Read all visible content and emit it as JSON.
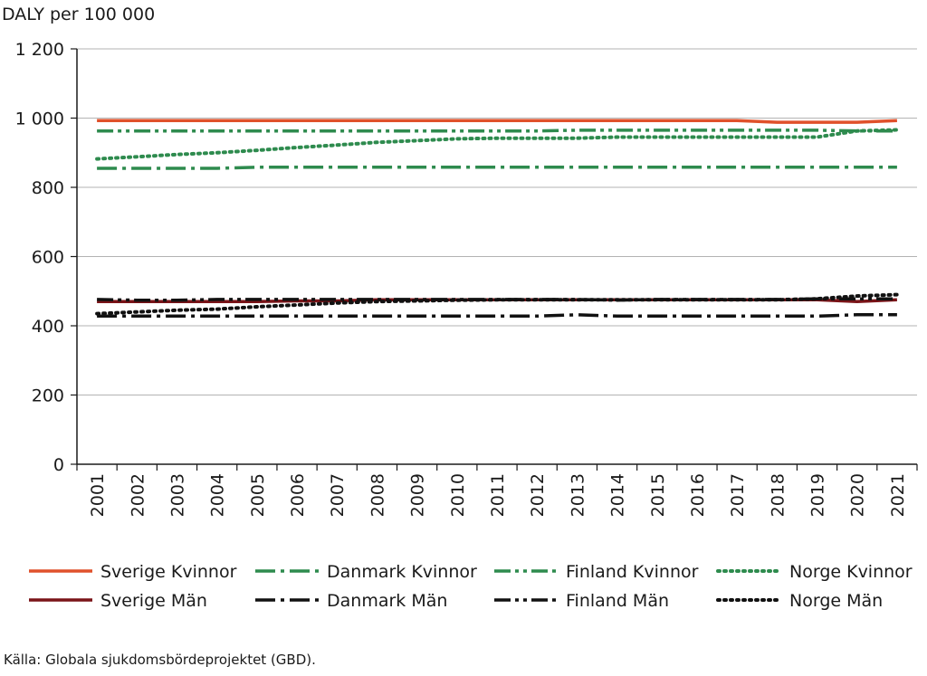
{
  "chart_data": {
    "type": "line",
    "ylabel": "DALY per 100 000",
    "xlabel": "",
    "ylim": [
      0,
      1200
    ],
    "yticks": [
      0,
      200,
      400,
      600,
      800,
      1000,
      1200
    ],
    "ytick_labels": [
      "0",
      "200",
      "400",
      "600",
      "800",
      "1 000",
      "1 200"
    ],
    "grid": "horizontal",
    "legend_position": "bottom",
    "x": [
      "2001",
      "2002",
      "2003",
      "2004",
      "2005",
      "2006",
      "2007",
      "2008",
      "2009",
      "2010",
      "2011",
      "2012",
      "2013",
      "2014",
      "2015",
      "2016",
      "2017",
      "2018",
      "2019",
      "2020",
      "2021"
    ],
    "series": [
      {
        "name": "Sverige Kvinnor",
        "color": "#e0512b",
        "style": "solid",
        "values": [
          993,
          993,
          993,
          993,
          993,
          993,
          993,
          993,
          993,
          993,
          993,
          993,
          993,
          993,
          993,
          993,
          993,
          988,
          988,
          988,
          993
        ]
      },
      {
        "name": "Danmark Kvinnor",
        "color": "#2e8b4e",
        "style": "dashdot",
        "values": [
          855,
          855,
          855,
          855,
          858,
          858,
          858,
          858,
          858,
          858,
          858,
          858,
          858,
          858,
          858,
          858,
          858,
          858,
          858,
          858,
          858
        ]
      },
      {
        "name": "Finland Kvinnor",
        "color": "#2e8b4e",
        "style": "dashdotdot",
        "values": [
          963,
          963,
          963,
          963,
          963,
          963,
          963,
          963,
          963,
          963,
          963,
          963,
          965,
          965,
          965,
          965,
          965,
          965,
          965,
          963,
          963
        ]
      },
      {
        "name": "Norge Kvinnor",
        "color": "#2e8b4e",
        "style": "dotted",
        "values": [
          882,
          888,
          895,
          900,
          907,
          915,
          922,
          930,
          935,
          940,
          942,
          942,
          942,
          945,
          945,
          945,
          945,
          945,
          945,
          963,
          966
        ]
      },
      {
        "name": "Sverige Män",
        "color": "#7a1418",
        "style": "solid",
        "values": [
          470,
          470,
          470,
          470,
          470,
          472,
          472,
          475,
          475,
          475,
          475,
          475,
          475,
          475,
          475,
          475,
          475,
          475,
          475,
          470,
          475
        ]
      },
      {
        "name": "Danmark Män",
        "color": "#111111",
        "style": "dashdot",
        "values": [
          428,
          428,
          428,
          428,
          428,
          428,
          428,
          428,
          428,
          428,
          428,
          428,
          432,
          428,
          428,
          428,
          428,
          428,
          428,
          432,
          432
        ]
      },
      {
        "name": "Finland Män",
        "color": "#111111",
        "style": "dashdotdot",
        "values": [
          476,
          474,
          474,
          476,
          476,
          476,
          476,
          476,
          476,
          476,
          476,
          476,
          476,
          474,
          476,
          476,
          476,
          476,
          478,
          478,
          478
        ]
      },
      {
        "name": "Norge Män",
        "color": "#111111",
        "style": "dotted",
        "values": [
          435,
          440,
          445,
          448,
          455,
          460,
          466,
          470,
          472,
          474,
          475,
          475,
          475,
          475,
          475,
          475,
          475,
          475,
          478,
          486,
          490
        ]
      }
    ]
  },
  "source_text": "Källa: Globala sjukdomsbördeprojektet (GBD)."
}
